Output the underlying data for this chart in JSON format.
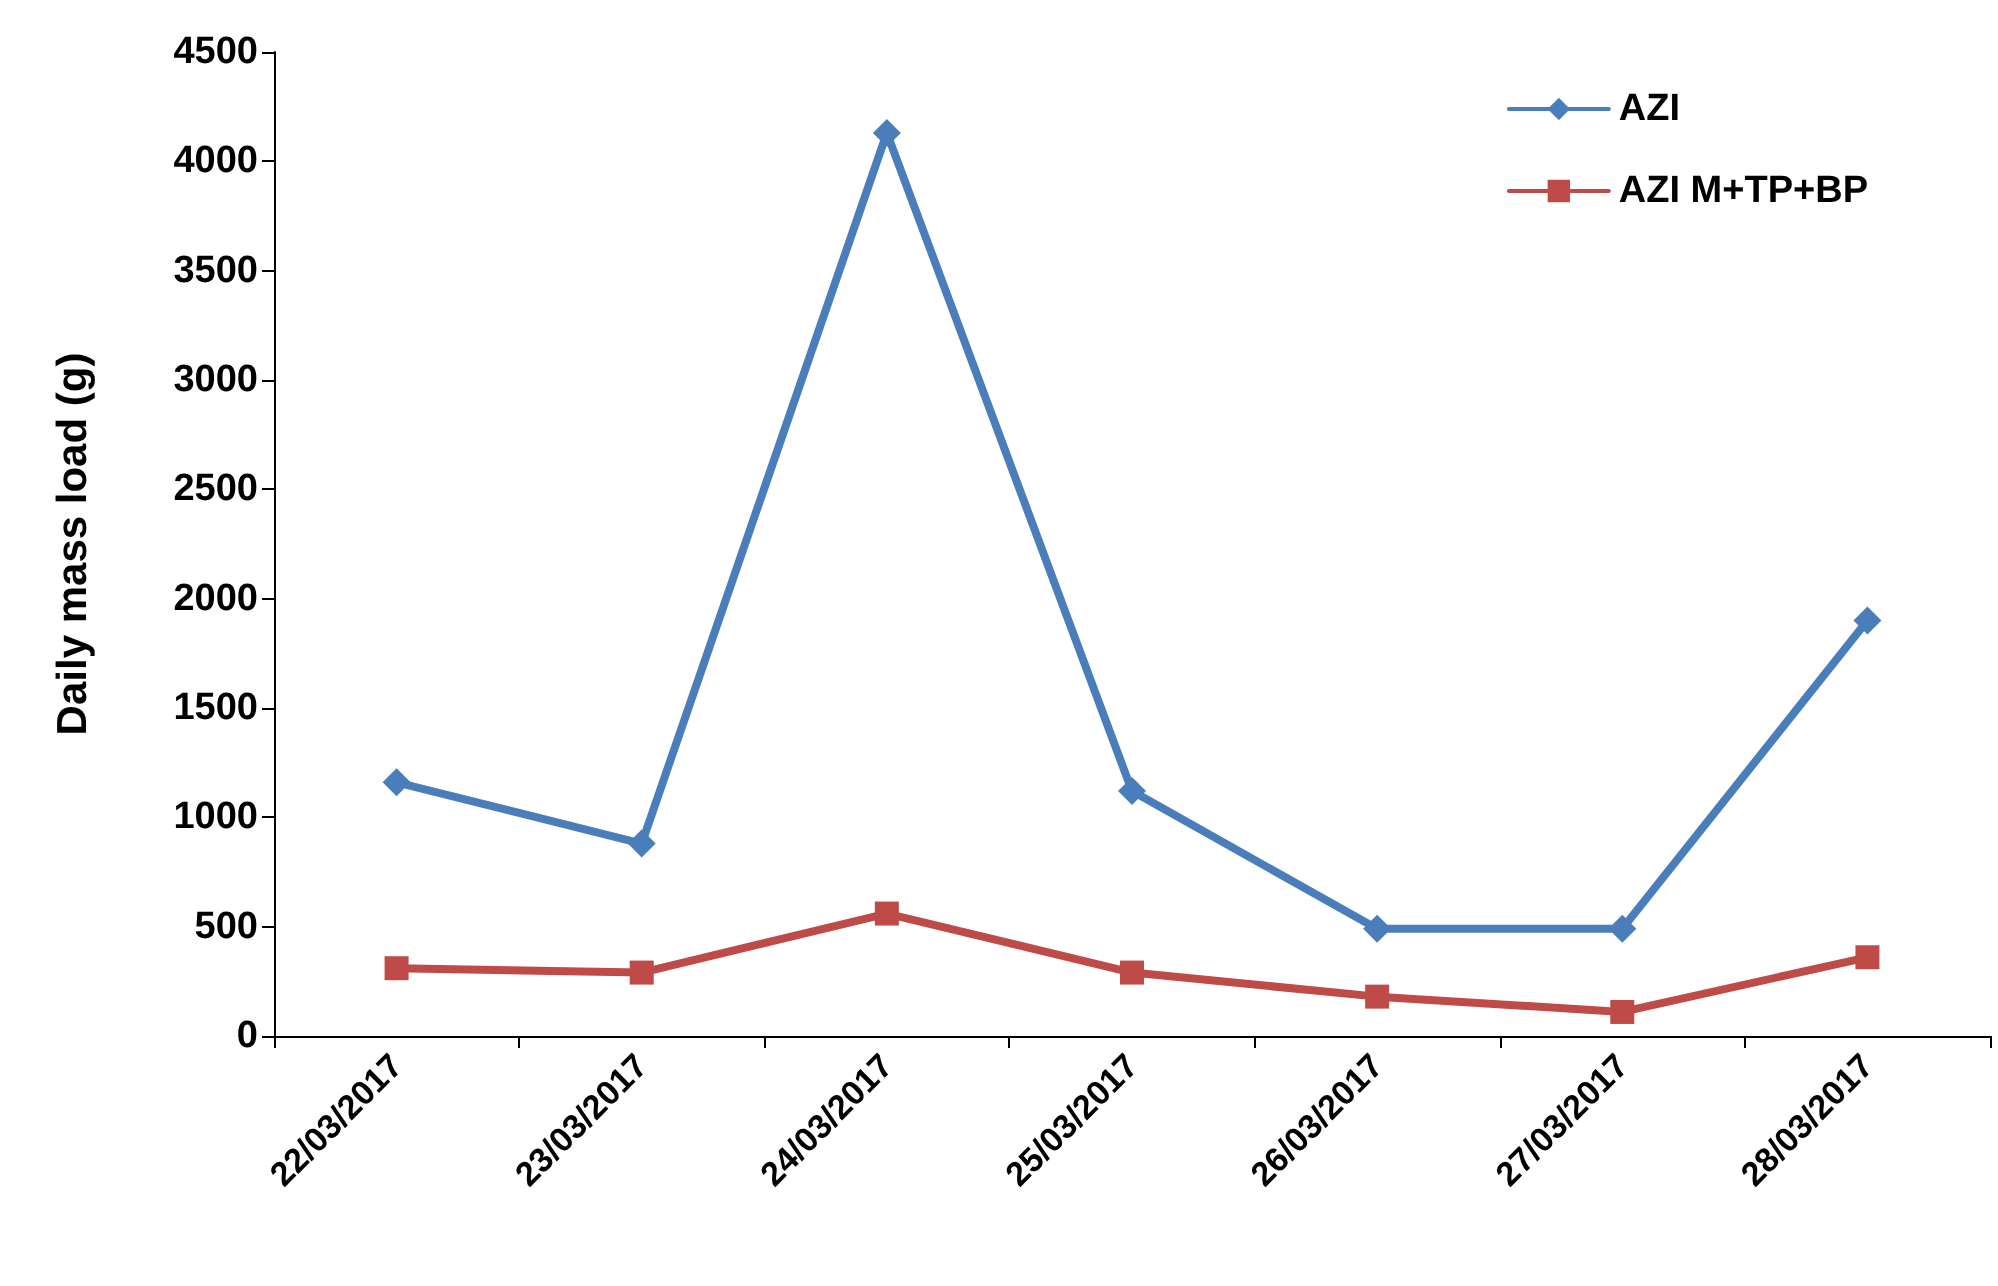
{
  "chart_data": {
    "type": "line",
    "ylabel": "Daily mass load (g)",
    "categories": [
      "22/03/2017",
      "23/03/2017",
      "24/03/2017",
      "25/03/2017",
      "26/03/2017",
      "27/03/2017",
      "28/03/2017"
    ],
    "series": [
      {
        "name": "AZI",
        "color": "#4a7ebb",
        "marker": "diamond",
        "values": [
          1160,
          880,
          4130,
          1120,
          490,
          490,
          1900
        ]
      },
      {
        "name": "AZI M+TP+BP",
        "color": "#be4b48",
        "marker": "square",
        "values": [
          310,
          290,
          560,
          290,
          180,
          110,
          360
        ]
      }
    ],
    "ylim": [
      0,
      4500
    ],
    "yticks": [
      0,
      500,
      1000,
      1500,
      2000,
      2500,
      3000,
      3500,
      4000,
      4500
    ],
    "grid": false,
    "legend": "top right",
    "line_style": "solid"
  }
}
